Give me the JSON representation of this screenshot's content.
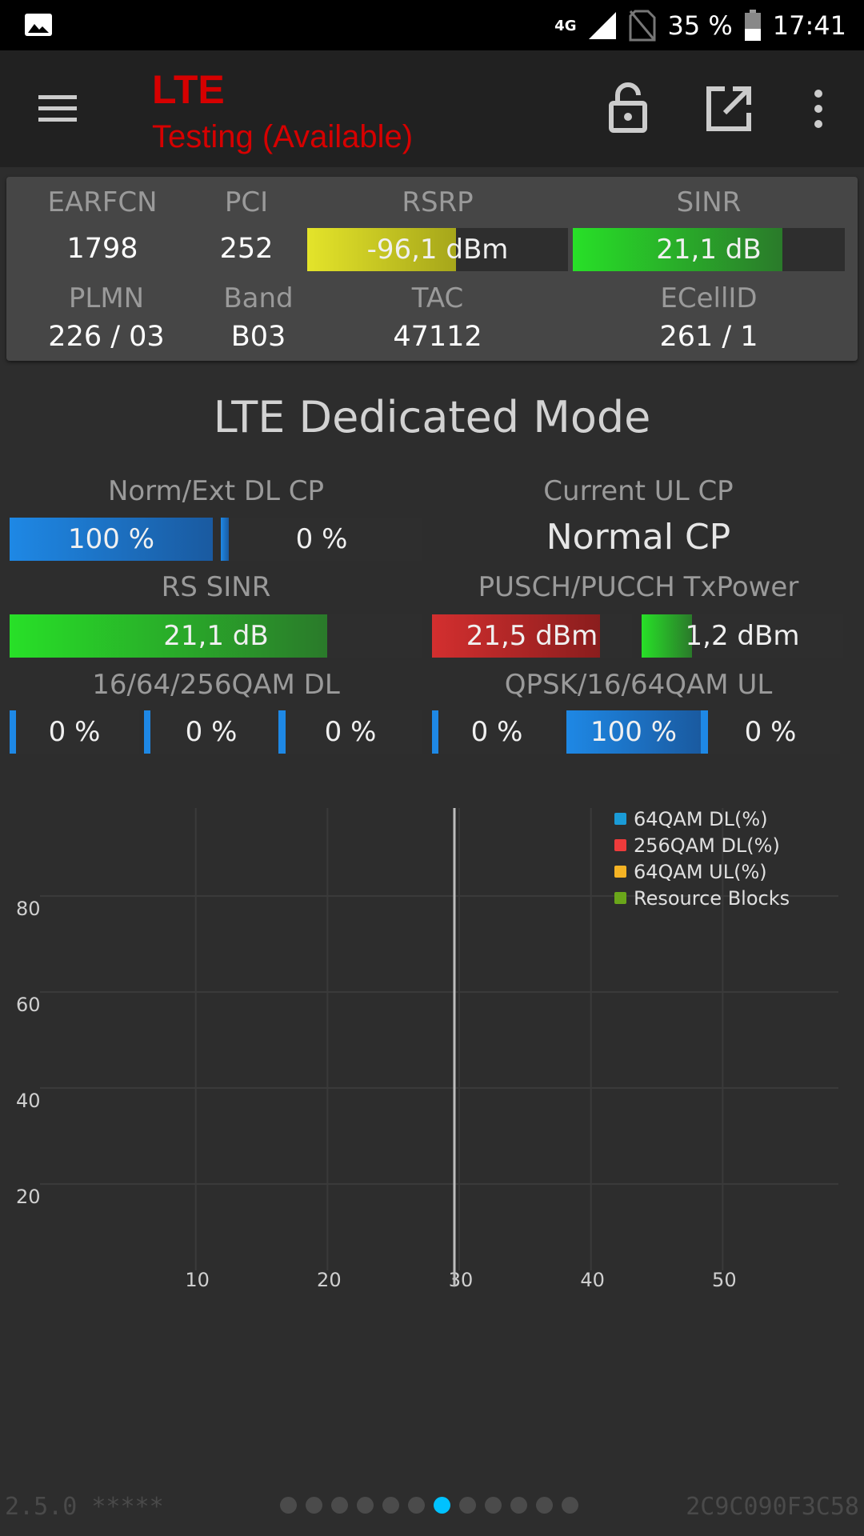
{
  "status_bar": {
    "network": "4G",
    "battery": "35 %",
    "time": "17:41"
  },
  "app_bar": {
    "title": "LTE",
    "subtitle": "Testing (Available)",
    "icons": [
      "menu-icon",
      "lock-open-icon",
      "open-external-icon",
      "more-vert-icon"
    ]
  },
  "info": {
    "earfcn_label": "EARFCN",
    "earfcn": "1798",
    "pci_label": "PCI",
    "pci": "252",
    "rsrp_label": "RSRP",
    "rsrp": "-96,1 dBm",
    "rsrp_fill": 0.57,
    "sinr_label": "SINR",
    "sinr": "21,1 dB",
    "sinr_fill": 0.77,
    "plmn_label": "PLMN",
    "plmn": "226 / 03",
    "band_label": "Band",
    "band": "B03",
    "tac_label": "TAC",
    "tac": "47112",
    "ecellid_label": "ECellID",
    "ecellid": "261 / 1"
  },
  "dedicated": {
    "title": "LTE Dedicated Mode",
    "dl_cp_label": "Norm/Ext DL CP",
    "dl_cp_norm": "100 %",
    "dl_cp_norm_fill": 1.0,
    "dl_cp_ext": "0 %",
    "dl_cp_ext_fill": 0,
    "ul_cp_label": "Current UL CP",
    "ul_cp_value": "Normal CP",
    "rs_sinr_label": "RS SINR",
    "rs_sinr": "21,1 dB",
    "rs_sinr_fill": 0.77,
    "txpower_label": "PUSCH/PUCCH TxPower",
    "pusch": "21,5 dBm",
    "pusch_fill": 0.84,
    "pucch": "1,2 dBm",
    "pucch_fill": 0.25,
    "qam_dl_label": "16/64/256QAM DL",
    "qam_dl": [
      "0 %",
      "0 %",
      "0 %"
    ],
    "qam_ul_label": "QPSK/16/64QAM UL",
    "qam_ul": [
      "0 %",
      "100 %",
      "0 %"
    ],
    "qam_ul_fill": [
      0,
      1.0,
      0
    ]
  },
  "chart_data": {
    "type": "line",
    "x_ticks": [
      "10",
      "20",
      "30",
      "40",
      "50"
    ],
    "y_ticks": [
      "80",
      "60",
      "40",
      "20"
    ],
    "xlim": [
      0,
      60
    ],
    "ylim": [
      0,
      100
    ],
    "cursor_x": 32,
    "grid": true,
    "legend_position": "top-right",
    "series": [
      {
        "name": "64QAM DL(%)",
        "color": "#1a9bd7",
        "values": []
      },
      {
        "name": "256QAM DL(%)",
        "color": "#ee3b3b",
        "values": []
      },
      {
        "name": "64QAM UL(%)",
        "color": "#f5b324",
        "values": []
      },
      {
        "name": "Resource Blocks",
        "color": "#6aa61a",
        "values": []
      }
    ]
  },
  "footer": {
    "version": "2.5.0 *****",
    "device_id": "2C9C090F3C58",
    "page_count": 12,
    "active_page": 7
  },
  "colors": {
    "accent_red": "#d60000",
    "blue": "#1e88e5",
    "green": "#2ecc2e",
    "yellow": "#d6dc2a",
    "red": "#c62828"
  }
}
